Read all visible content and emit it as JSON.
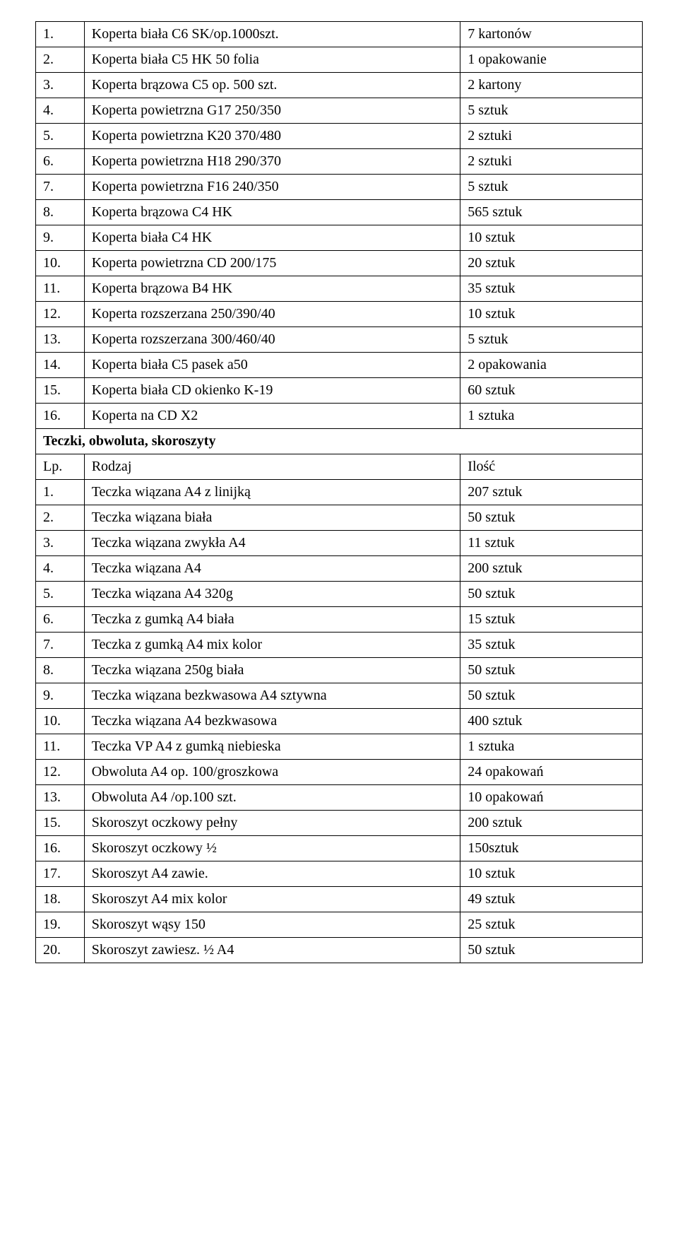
{
  "section1": {
    "rows": [
      {
        "n": "1.",
        "name": "Koperta biała C6 SK/op.1000szt.",
        "qty": "7 kartonów"
      },
      {
        "n": "2.",
        "name": "Koperta biała C5 HK 50 folia",
        "qty": "1 opakowanie"
      },
      {
        "n": "3.",
        "name": "Koperta brązowa C5 op. 500 szt.",
        "qty": "2 kartony"
      },
      {
        "n": "4.",
        "name": "Koperta powietrzna G17 250/350",
        "qty": "5 sztuk"
      },
      {
        "n": "5.",
        "name": "Koperta powietrzna K20 370/480",
        "qty": "2 sztuki"
      },
      {
        "n": "6.",
        "name": "Koperta powietrzna H18 290/370",
        "qty": "2 sztuki"
      },
      {
        "n": "7.",
        "name": "Koperta powietrzna F16 240/350",
        "qty": "5 sztuk"
      },
      {
        "n": "8.",
        "name": "Koperta brązowa C4 HK",
        "qty": "565 sztuk"
      },
      {
        "n": "9.",
        "name": "Koperta biała C4 HK",
        "qty": "10 sztuk"
      },
      {
        "n": "10.",
        "name": "Koperta powietrzna CD 200/175",
        "qty": "20 sztuk"
      },
      {
        "n": "11.",
        "name": "Koperta brązowa B4 HK",
        "qty": "35 sztuk"
      },
      {
        "n": "12.",
        "name": "Koperta rozszerzana 250/390/40",
        "qty": "10 sztuk"
      },
      {
        "n": "13.",
        "name": "Koperta rozszerzana 300/460/40",
        "qty": "5 sztuk"
      },
      {
        "n": "14.",
        "name": "Koperta biała C5 pasek a50",
        "qty": "2 opakowania"
      },
      {
        "n": "15.",
        "name": "Koperta biała CD okienko K-19",
        "qty": "60 sztuk"
      },
      {
        "n": "16.",
        "name": "Koperta na CD X2",
        "qty": "1 sztuka"
      }
    ]
  },
  "section2": {
    "title": "Teczki, obwoluta, skoroszyty",
    "header": {
      "n": "Lp.",
      "name": "Rodzaj",
      "qty": "Ilość"
    },
    "rows": [
      {
        "n": "1.",
        "name": "Teczka wiązana A4 z linijką",
        "qty": "207 sztuk"
      },
      {
        "n": "2.",
        "name": "Teczka wiązana biała",
        "qty": "50 sztuk"
      },
      {
        "n": "3.",
        "name": "Teczka wiązana zwykła A4",
        "qty": "11 sztuk"
      },
      {
        "n": "4.",
        "name": "Teczka wiązana A4",
        "qty": "200 sztuk"
      },
      {
        "n": "5.",
        "name": "Teczka wiązana A4 320g",
        "qty": "50 sztuk"
      },
      {
        "n": "6.",
        "name": "Teczka z gumką A4 biała",
        "qty": "15 sztuk"
      },
      {
        "n": "7.",
        "name": "Teczka z gumką A4 mix kolor",
        "qty": "35 sztuk"
      },
      {
        "n": "8.",
        "name": "Teczka  wiązana 250g biała",
        "qty": "50 sztuk"
      },
      {
        "n": "9.",
        "name": "Teczka wiązana bezkwasowa A4 sztywna",
        "qty": "50 sztuk"
      },
      {
        "n": "10.",
        "name": "Teczka wiązana A4 bezkwasowa",
        "qty": "400 sztuk"
      },
      {
        "n": "11.",
        "name": "Teczka VP A4 z gumką niebieska",
        "qty": "1 sztuka"
      },
      {
        "n": "12.",
        "name": "Obwoluta A4 op. 100/groszkowa",
        "qty": "24 opakowań"
      },
      {
        "n": "13.",
        "name": "Obwoluta A4 /op.100 szt.",
        "qty": "10 opakowań"
      },
      {
        "n": "15.",
        "name": "Skoroszyt oczkowy pełny",
        "qty": "200 sztuk"
      },
      {
        "n": "16.",
        "name": "Skoroszyt oczkowy ½",
        "qty": "150sztuk"
      },
      {
        "n": "17.",
        "name": "Skoroszyt A4 zawie.",
        "qty": "10 sztuk"
      },
      {
        "n": "18.",
        "name": "Skoroszyt A4 mix kolor",
        "qty": "49 sztuk"
      },
      {
        "n": "19.",
        "name": "Skoroszyt wąsy 150",
        "qty": "25 sztuk"
      },
      {
        "n": "20.",
        "name": "Skoroszyt zawiesz. ½ A4",
        "qty": "50 sztuk"
      }
    ]
  },
  "styling": {
    "font_family": "Times New Roman",
    "font_size_pt": 15,
    "text_color": "#000000",
    "background_color": "#ffffff",
    "border_color": "#000000",
    "col_widths_pct": [
      8,
      62,
      30
    ]
  }
}
